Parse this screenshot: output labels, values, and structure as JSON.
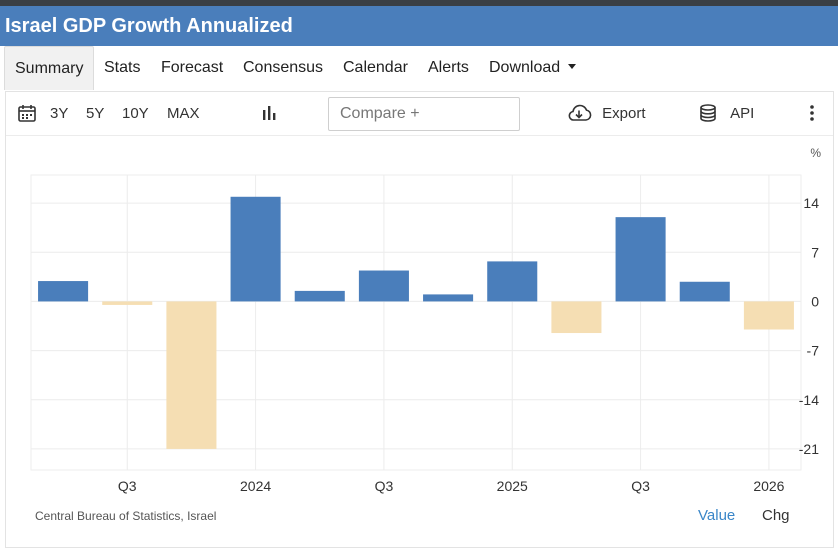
{
  "title": "Israel GDP Growth Annualized",
  "tabs": [
    {
      "label": "Summary"
    },
    {
      "label": "Stats"
    },
    {
      "label": "Forecast"
    },
    {
      "label": "Consensus"
    },
    {
      "label": "Calendar"
    },
    {
      "label": "Alerts"
    },
    {
      "label": "Download"
    }
  ],
  "toolbar": {
    "ranges": [
      "3Y",
      "5Y",
      "10Y",
      "MAX"
    ],
    "compare_placeholder": "Compare +",
    "export_label": "Export",
    "api_label": "API"
  },
  "footer": {
    "source": "Central Bureau of Statistics, Israel",
    "value_label": "Value",
    "chg_label": "Chg"
  },
  "colors": {
    "positive": "#4a7ebb",
    "negative": "#f5deb3",
    "header": "#4a7ebb",
    "active_legend": "#3a86c8"
  },
  "chart_data": {
    "type": "bar",
    "unit": "%",
    "x": [
      "2023 Q2",
      "2023 Q3",
      "2023 Q4",
      "2024 Q1",
      "2024 Q2",
      "2024 Q3",
      "2024 Q4",
      "2025 Q1",
      "2025 Q2",
      "2025 Q3",
      "2025 Q4",
      "2026 Q1"
    ],
    "values": [
      2.9,
      -0.5,
      -21.0,
      14.9,
      1.5,
      4.4,
      1.0,
      5.7,
      -4.5,
      12.0,
      2.8,
      -4.0
    ],
    "xticks": [
      "Q3",
      "2024",
      "Q3",
      "2025",
      "Q3",
      "2026"
    ],
    "yticks": [
      14,
      7,
      0,
      -7,
      -14,
      -21
    ],
    "ylim": [
      -24,
      18
    ],
    "grid": true,
    "legend": "bottom-right"
  }
}
